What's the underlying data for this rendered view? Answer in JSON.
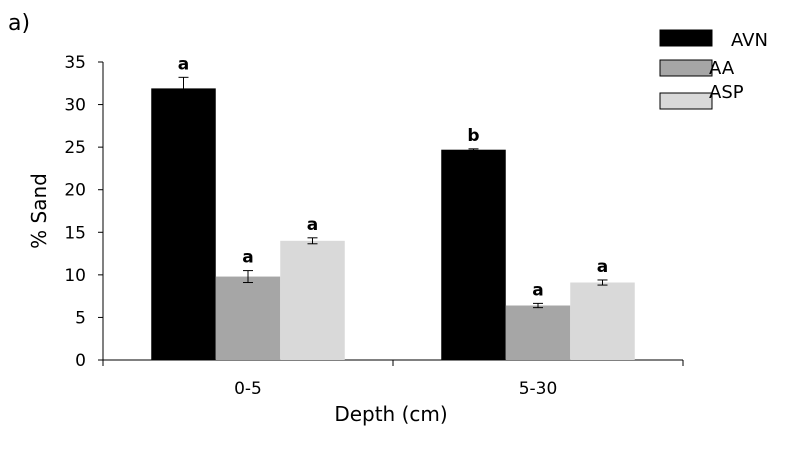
{
  "chart_data": {
    "type": "bar",
    "panel_label": "a)",
    "title": "",
    "xlabel": "Depth (cm)",
    "ylabel": "% Sand",
    "ylim": [
      0,
      35
    ],
    "yticks": [
      0,
      5,
      10,
      15,
      20,
      25,
      30,
      35
    ],
    "categories": [
      "0-5",
      "5-30"
    ],
    "legend_position": "top-right",
    "series": [
      {
        "name": "AVN",
        "color": "#000000",
        "values": [
          31.9,
          24.7
        ],
        "errors": [
          1.3,
          0.1
        ],
        "letters": [
          "a",
          "b"
        ]
      },
      {
        "name": "AA",
        "color": "#a6a6a6",
        "values": [
          9.8,
          6.4
        ],
        "errors": [
          0.7,
          0.25
        ],
        "letters": [
          "a",
          "a"
        ]
      },
      {
        "name": "ASP",
        "color": "#d9d9d9",
        "values": [
          14.0,
          9.1
        ],
        "errors": [
          0.35,
          0.3
        ],
        "letters": [
          "a",
          "a"
        ]
      }
    ]
  }
}
